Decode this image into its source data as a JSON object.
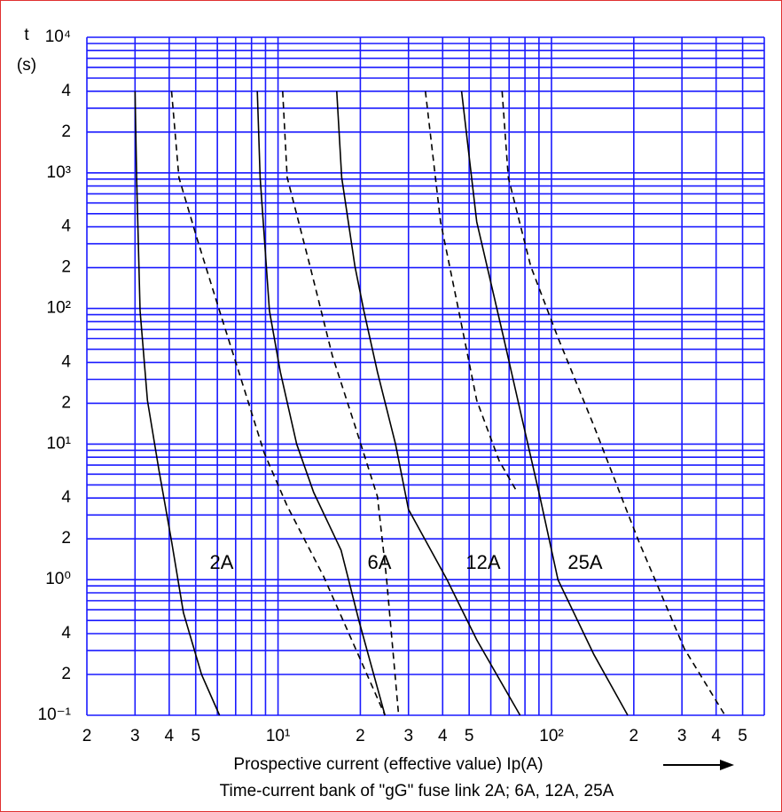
{
  "chart_data": {
    "type": "line",
    "y_label": "t",
    "y_unit": "(s)",
    "x_label": "Prospective current (effective value)   Ip(A)",
    "caption": "Time-current  bank of \"gG\" fuse link 2A; 6A, 12A, 25A",
    "log_x": true,
    "log_y": true,
    "grid": true,
    "grid_color": "#1a1aff",
    "xlim": [
      2,
      600
    ],
    "ylim": [
      0.1,
      10000
    ],
    "xticks": [
      2,
      3,
      4,
      5,
      {
        "value": 10,
        "label": "10¹"
      },
      {
        "value": 20,
        "label": "2"
      },
      {
        "value": 30,
        "label": "3"
      },
      {
        "value": 40,
        "label": "4"
      },
      {
        "value": 50,
        "label": "5"
      },
      {
        "value": 100,
        "label": "10²"
      },
      {
        "value": 200,
        "label": "2"
      },
      {
        "value": 300,
        "label": "3"
      },
      {
        "value": 400,
        "label": "4"
      },
      {
        "value": 500,
        "label": "5"
      }
    ],
    "yticks": [
      {
        "value": 0.1,
        "label": "10⁻¹"
      },
      {
        "value": 0.2,
        "label": "2"
      },
      {
        "value": 0.4,
        "label": "4"
      },
      {
        "value": 1,
        "label": "10⁰"
      },
      2,
      4,
      {
        "value": 10,
        "label": "10¹"
      },
      {
        "value": 20,
        "label": "2"
      },
      {
        "value": 40,
        "label": "4"
      },
      {
        "value": 100,
        "label": "10²"
      },
      {
        "value": 200,
        "label": "2"
      },
      {
        "value": 400,
        "label": "4"
      },
      {
        "value": 1000,
        "label": "10³"
      },
      {
        "value": 2000,
        "label": "2"
      },
      {
        "value": 4000,
        "label": "4"
      },
      {
        "value": 10000,
        "label": "10⁴"
      }
    ],
    "xgrid": [
      2,
      3,
      4,
      5,
      6,
      7,
      8,
      9,
      10,
      20,
      30,
      40,
      50,
      60,
      70,
      80,
      90,
      100,
      200,
      300,
      400,
      500,
      600
    ],
    "ygrid": [
      0.1,
      0.2,
      0.3,
      0.4,
      0.5,
      0.6,
      0.7,
      0.8,
      0.9,
      1,
      2,
      3,
      4,
      5,
      6,
      7,
      8,
      9,
      10,
      20,
      30,
      40,
      50,
      60,
      70,
      80,
      90,
      100,
      200,
      300,
      400,
      500,
      600,
      700,
      800,
      900,
      1000,
      2000,
      3000,
      4000,
      5000,
      6000,
      7000,
      8000,
      9000,
      10000
    ],
    "series": [
      {
        "name": "2A",
        "color": "#000000",
        "dashed": false,
        "x": [
          3,
          3.04,
          3.13,
          3.33,
          3.67,
          4.08,
          4.51,
          5.25,
          6.11
        ],
        "values": [
          4000,
          925,
          96,
          21,
          6.4,
          1.92,
          0.57,
          0.2,
          0.1
        ]
      },
      {
        "color": "#000000",
        "dashed": true,
        "x": [
          4.08,
          4.34,
          5.07,
          6.11,
          7.37,
          8.9,
          10.8,
          14.7,
          19.8,
          24.6
        ],
        "values": [
          4000,
          925,
          322,
          96,
          29,
          8.6,
          3.5,
          1.05,
          0.27,
          0.1
        ]
      },
      {
        "name": "6A",
        "color": "#000000",
        "dashed": false,
        "x": [
          8.4,
          8.6,
          9.3,
          10.2,
          11.7,
          13.5,
          17,
          19.8,
          24.6
        ],
        "values": [
          4000,
          925,
          96,
          34,
          10,
          4.4,
          1.65,
          0.49,
          0.1
        ]
      },
      {
        "color": "#000000",
        "dashed": true,
        "x": [
          10.4,
          10.8,
          13.1,
          15.8,
          19.1,
          23.1,
          24.9,
          27.6
        ],
        "values": [
          4000,
          925,
          205,
          45,
          13.7,
          4.1,
          1.05,
          0.1
        ]
      },
      {
        "name": "12A",
        "color": "#000000",
        "dashed": false,
        "x": [
          16.4,
          17.1,
          19.1,
          20.6,
          23.1,
          26.9,
          30,
          41.5,
          53.3,
          76.8
        ],
        "values": [
          4000,
          925,
          205,
          96,
          34,
          10,
          3.3,
          1,
          0.36,
          0.1
        ]
      },
      {
        "color": "#000000",
        "dashed": true,
        "x": [
          34.6,
          39.3,
          45.8,
          53.3,
          64.4,
          75
        ],
        "values": [
          4000,
          435,
          96,
          21,
          7.5,
          4.4
        ]
      },
      {
        "name": "25A",
        "color": "#000000",
        "dashed": false,
        "x": [
          46.9,
          53.3,
          66.8,
          77.9,
          90.7,
          105.6,
          143,
          190
        ],
        "values": [
          4000,
          435,
          61,
          15.7,
          4.1,
          1,
          0.28,
          0.1
        ]
      },
      {
        "color": "#000000",
        "dashed": true,
        "x": [
          66,
          69.5,
          84,
          105.6,
          143,
          180,
          209,
          306,
          431
        ],
        "values": [
          4000,
          925,
          205,
          61,
          13.6,
          4.1,
          1.9,
          0.31,
          0.1
        ]
      }
    ]
  }
}
